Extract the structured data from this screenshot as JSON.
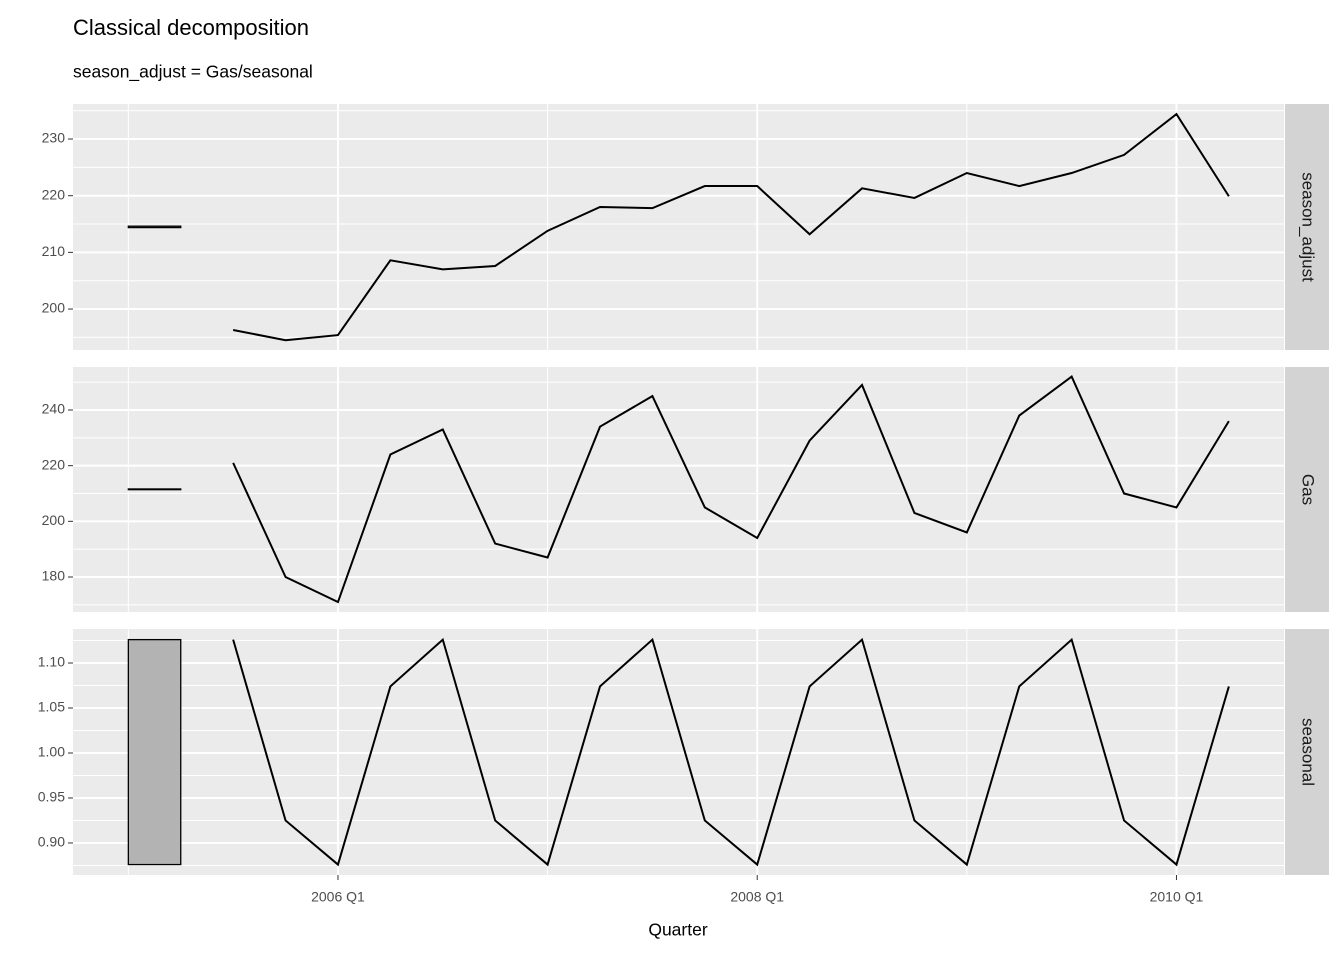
{
  "title": "Classical decomposition",
  "subtitle": "season_adjust = Gas/seasonal",
  "x_label": "Quarter",
  "x": [
    2005.5,
    2005.75,
    2006,
    2006.25,
    2006.5,
    2006.75,
    2007,
    2007.25,
    2007.5,
    2007.75,
    2008,
    2008.25,
    2008.5,
    2008.75,
    2009,
    2009.25,
    2009.5,
    2009.75,
    2010,
    2010.25
  ],
  "xlim": [
    2004.736,
    2010.513
  ],
  "xticks": [
    {
      "value": 2006,
      "label": "2006 Q1"
    },
    {
      "value": 2008,
      "label": "2008 Q1"
    },
    {
      "value": 2010,
      "label": "2010 Q1"
    }
  ],
  "scale_bar_x": [
    2005,
    2005.25
  ],
  "chart_data": [
    {
      "type": "line",
      "strip": "season_adjust",
      "color": "#000000",
      "values": [
        196.3,
        194.5,
        195.4,
        208.6,
        207.0,
        207.6,
        213.8,
        218.0,
        217.8,
        221.7,
        221.7,
        213.2,
        221.3,
        219.6,
        224.0,
        221.7,
        224.0,
        227.2,
        234.4,
        219.9
      ],
      "scale_bar": [
        214.37,
        214.62
      ],
      "ylim": [
        192.77,
        236.18
      ],
      "yticks": [
        200,
        210,
        220,
        230
      ]
    },
    {
      "type": "line",
      "strip": "Gas",
      "color": "#000000",
      "values": [
        221,
        180,
        171,
        224,
        233,
        192,
        187,
        234,
        245,
        205,
        194,
        229,
        249,
        203,
        196,
        238,
        252,
        210,
        205,
        236
      ],
      "scale_bar": [
        211.37,
        211.63
      ],
      "ylim": [
        167.42,
        255.45
      ],
      "yticks": [
        180,
        200,
        220,
        240
      ]
    },
    {
      "type": "line",
      "strip": "seasonal",
      "color": "#000000",
      "values": [
        1.126,
        0.925,
        0.876,
        1.074,
        1.126,
        0.925,
        0.876,
        1.074,
        1.126,
        0.925,
        0.876,
        1.074,
        1.126,
        0.925,
        0.876,
        1.074,
        1.126,
        0.925,
        0.876,
        1.074
      ],
      "scale_bar": [
        0.876,
        1.126
      ],
      "ylim": [
        0.8644,
        1.1378
      ],
      "yticks": [
        {
          "value": 0.9,
          "label": "0.90"
        },
        0.95,
        {
          "value": 1.0,
          "label": "1.00"
        },
        1.05,
        {
          "value": 1.1,
          "label": "1.10"
        }
      ]
    }
  ]
}
